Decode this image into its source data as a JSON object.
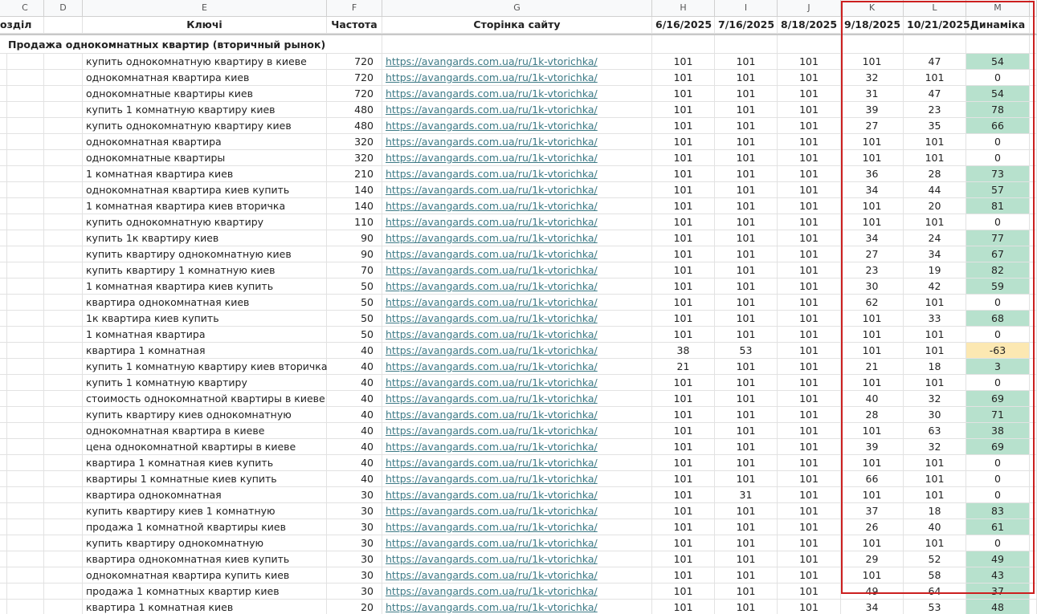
{
  "column_letters": [
    "C",
    "D",
    "E",
    "F",
    "G",
    "H",
    "I",
    "J",
    "K",
    "L",
    "M"
  ],
  "header": {
    "section": "озділ",
    "keys": "Ключі",
    "frequency": "Частота",
    "page": "Сторінка сайту",
    "dates": [
      "6/16/2025",
      "7/16/2025",
      "8/18/2025",
      "9/18/2025",
      "10/21/2025"
    ],
    "dynamics": "Динаміка"
  },
  "group": "Продажа однокомнатных квартир (вторичный рынок)",
  "rows": [
    [
      "купить однокомнатную квартиру в киеве",
      720,
      "https://avangards.com.ua/ru/1k-vtorichka/",
      101,
      101,
      101,
      101,
      47,
      54
    ],
    [
      "однокомнатная квартира киев",
      720,
      "https://avangards.com.ua/ru/1k-vtorichka/",
      101,
      101,
      101,
      32,
      101,
      0
    ],
    [
      "однокомнатные квартиры киев",
      720,
      "https://avangards.com.ua/ru/1k-vtorichka/",
      101,
      101,
      101,
      31,
      47,
      54
    ],
    [
      "купить 1 комнатную квартиру киев",
      480,
      "https://avangards.com.ua/ru/1k-vtorichka/",
      101,
      101,
      101,
      39,
      23,
      78
    ],
    [
      "купить однокомнатную квартиру киев",
      480,
      "https://avangards.com.ua/ru/1k-vtorichka/",
      101,
      101,
      101,
      27,
      35,
      66
    ],
    [
      "однокомнатная квартира",
      320,
      "https://avangards.com.ua/ru/1k-vtorichka/",
      101,
      101,
      101,
      101,
      101,
      0
    ],
    [
      "однокомнатные квартиры",
      320,
      "https://avangards.com.ua/ru/1k-vtorichka/",
      101,
      101,
      101,
      101,
      101,
      0
    ],
    [
      "1 комнатная квартира киев",
      210,
      "https://avangards.com.ua/ru/1k-vtorichka/",
      101,
      101,
      101,
      36,
      28,
      73
    ],
    [
      "однокомнатная квартира киев купить",
      140,
      "https://avangards.com.ua/ru/1k-vtorichka/",
      101,
      101,
      101,
      34,
      44,
      57
    ],
    [
      "1 комнатная квартира киев вторичка",
      140,
      "https://avangards.com.ua/ru/1k-vtorichka/",
      101,
      101,
      101,
      101,
      20,
      81
    ],
    [
      "купить однокомнатную квартиру",
      110,
      "https://avangards.com.ua/ru/1k-vtorichka/",
      101,
      101,
      101,
      101,
      101,
      0
    ],
    [
      "купить 1к квартиру киев",
      90,
      "https://avangards.com.ua/ru/1k-vtorichka/",
      101,
      101,
      101,
      34,
      24,
      77
    ],
    [
      "купить квартиру однокомнатную киев",
      90,
      "https://avangards.com.ua/ru/1k-vtorichka/",
      101,
      101,
      101,
      27,
      34,
      67
    ],
    [
      "купить квартиру 1 комнатную киев",
      70,
      "https://avangards.com.ua/ru/1k-vtorichka/",
      101,
      101,
      101,
      23,
      19,
      82
    ],
    [
      "1 комнатная квартира киев купить",
      50,
      "https://avangards.com.ua/ru/1k-vtorichka/",
      101,
      101,
      101,
      30,
      42,
      59
    ],
    [
      "квартира однокомнатная киев",
      50,
      "https://avangards.com.ua/ru/1k-vtorichka/",
      101,
      101,
      101,
      62,
      101,
      0
    ],
    [
      "1к квартира киев купить",
      50,
      "https://avangards.com.ua/ru/1k-vtorichka/",
      101,
      101,
      101,
      101,
      33,
      68
    ],
    [
      "1 комнатная квартира",
      50,
      "https://avangards.com.ua/ru/1k-vtorichka/",
      101,
      101,
      101,
      101,
      101,
      0
    ],
    [
      "квартира 1 комнатная",
      40,
      "https://avangards.com.ua/ru/1k-vtorichka/",
      38,
      53,
      101,
      101,
      101,
      -63
    ],
    [
      "купить 1 комнатную квартиру киев вторичка",
      40,
      "https://avangards.com.ua/ru/1k-vtorichka/",
      21,
      101,
      101,
      21,
      18,
      3
    ],
    [
      "купить 1 комнатную квартиру",
      40,
      "https://avangards.com.ua/ru/1k-vtorichka/",
      101,
      101,
      101,
      101,
      101,
      0
    ],
    [
      "стоимость однокомнатной квартиры в киеве",
      40,
      "https://avangards.com.ua/ru/1k-vtorichka/",
      101,
      101,
      101,
      40,
      32,
      69
    ],
    [
      "купить квартиру киев однокомнатную",
      40,
      "https://avangards.com.ua/ru/1k-vtorichka/",
      101,
      101,
      101,
      28,
      30,
      71
    ],
    [
      "однокомнатная квартира в киеве",
      40,
      "https://avangards.com.ua/ru/1k-vtorichka/",
      101,
      101,
      101,
      101,
      63,
      38
    ],
    [
      "цена однокомнатной квартиры в киеве",
      40,
      "https://avangards.com.ua/ru/1k-vtorichka/",
      101,
      101,
      101,
      39,
      32,
      69
    ],
    [
      "квартира 1 комнатная киев купить",
      40,
      "https://avangards.com.ua/ru/1k-vtorichka/",
      101,
      101,
      101,
      101,
      101,
      0
    ],
    [
      "квартиры 1 комнатные киев купить",
      40,
      "https://avangards.com.ua/ru/1k-vtorichka/",
      101,
      101,
      101,
      66,
      101,
      0
    ],
    [
      "квартира однокомнатная",
      30,
      "https://avangards.com.ua/ru/1k-vtorichka/",
      101,
      31,
      101,
      101,
      101,
      0
    ],
    [
      "купить квартиру киев 1 комнатную",
      30,
      "https://avangards.com.ua/ru/1k-vtorichka/",
      101,
      101,
      101,
      37,
      18,
      83
    ],
    [
      "продажа 1 комнатной квартиры киев",
      30,
      "https://avangards.com.ua/ru/1k-vtorichka/",
      101,
      101,
      101,
      26,
      40,
      61
    ],
    [
      "купить квартиру однокомнатную",
      30,
      "https://avangards.com.ua/ru/1k-vtorichka/",
      101,
      101,
      101,
      101,
      101,
      0
    ],
    [
      "квартира однокомнатная киев купить",
      30,
      "https://avangards.com.ua/ru/1k-vtorichka/",
      101,
      101,
      101,
      29,
      52,
      49
    ],
    [
      "однокомнатная квартира купить киев",
      30,
      "https://avangards.com.ua/ru/1k-vtorichka/",
      101,
      101,
      101,
      101,
      58,
      43
    ],
    [
      "продажа 1 комнатных квартир киев",
      30,
      "https://avangards.com.ua/ru/1k-vtorichka/",
      101,
      101,
      101,
      49,
      64,
      37
    ],
    [
      "квартира 1 комнатная киев",
      20,
      "https://avangards.com.ua/ru/1k-vtorichka/",
      101,
      101,
      101,
      34,
      53,
      48
    ]
  ]
}
